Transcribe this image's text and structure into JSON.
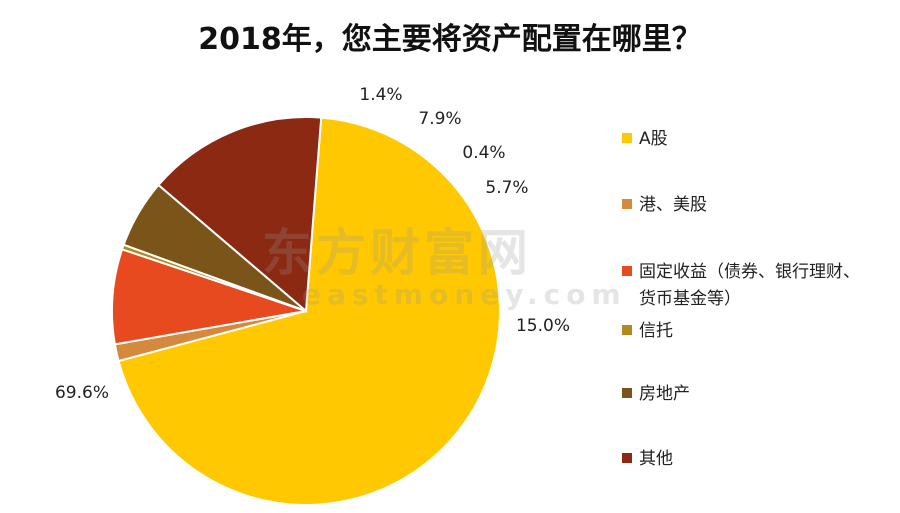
{
  "chart_data": {
    "type": "pie",
    "title": "2018年，您主要将资产配置在哪里？",
    "slices": [
      {
        "label": "A股",
        "value": 69.6,
        "display": "69.6%",
        "color": "#FFC800"
      },
      {
        "label": "港、美股",
        "value": 1.4,
        "display": "1.4%",
        "color": "#D4893C"
      },
      {
        "label": "固定收益（债券、银行理财、货币基金等）",
        "label_lines": [
          "固定收益（债券、银行理财、",
          "货币基金等）"
        ],
        "value": 7.9,
        "display": "7.9%",
        "color": "#E84A20"
      },
      {
        "label": "信托",
        "value": 0.4,
        "display": "0.4%",
        "color": "#B08A1E"
      },
      {
        "label": "房地产",
        "value": 5.7,
        "display": "5.7%",
        "color": "#7A5418"
      },
      {
        "label": "其他",
        "value": 15.0,
        "display": "15.0%",
        "color": "#8C2912"
      }
    ],
    "legend_position": "right"
  },
  "watermark": {
    "cn": "东方财富网",
    "en": "eastmoney.com"
  }
}
